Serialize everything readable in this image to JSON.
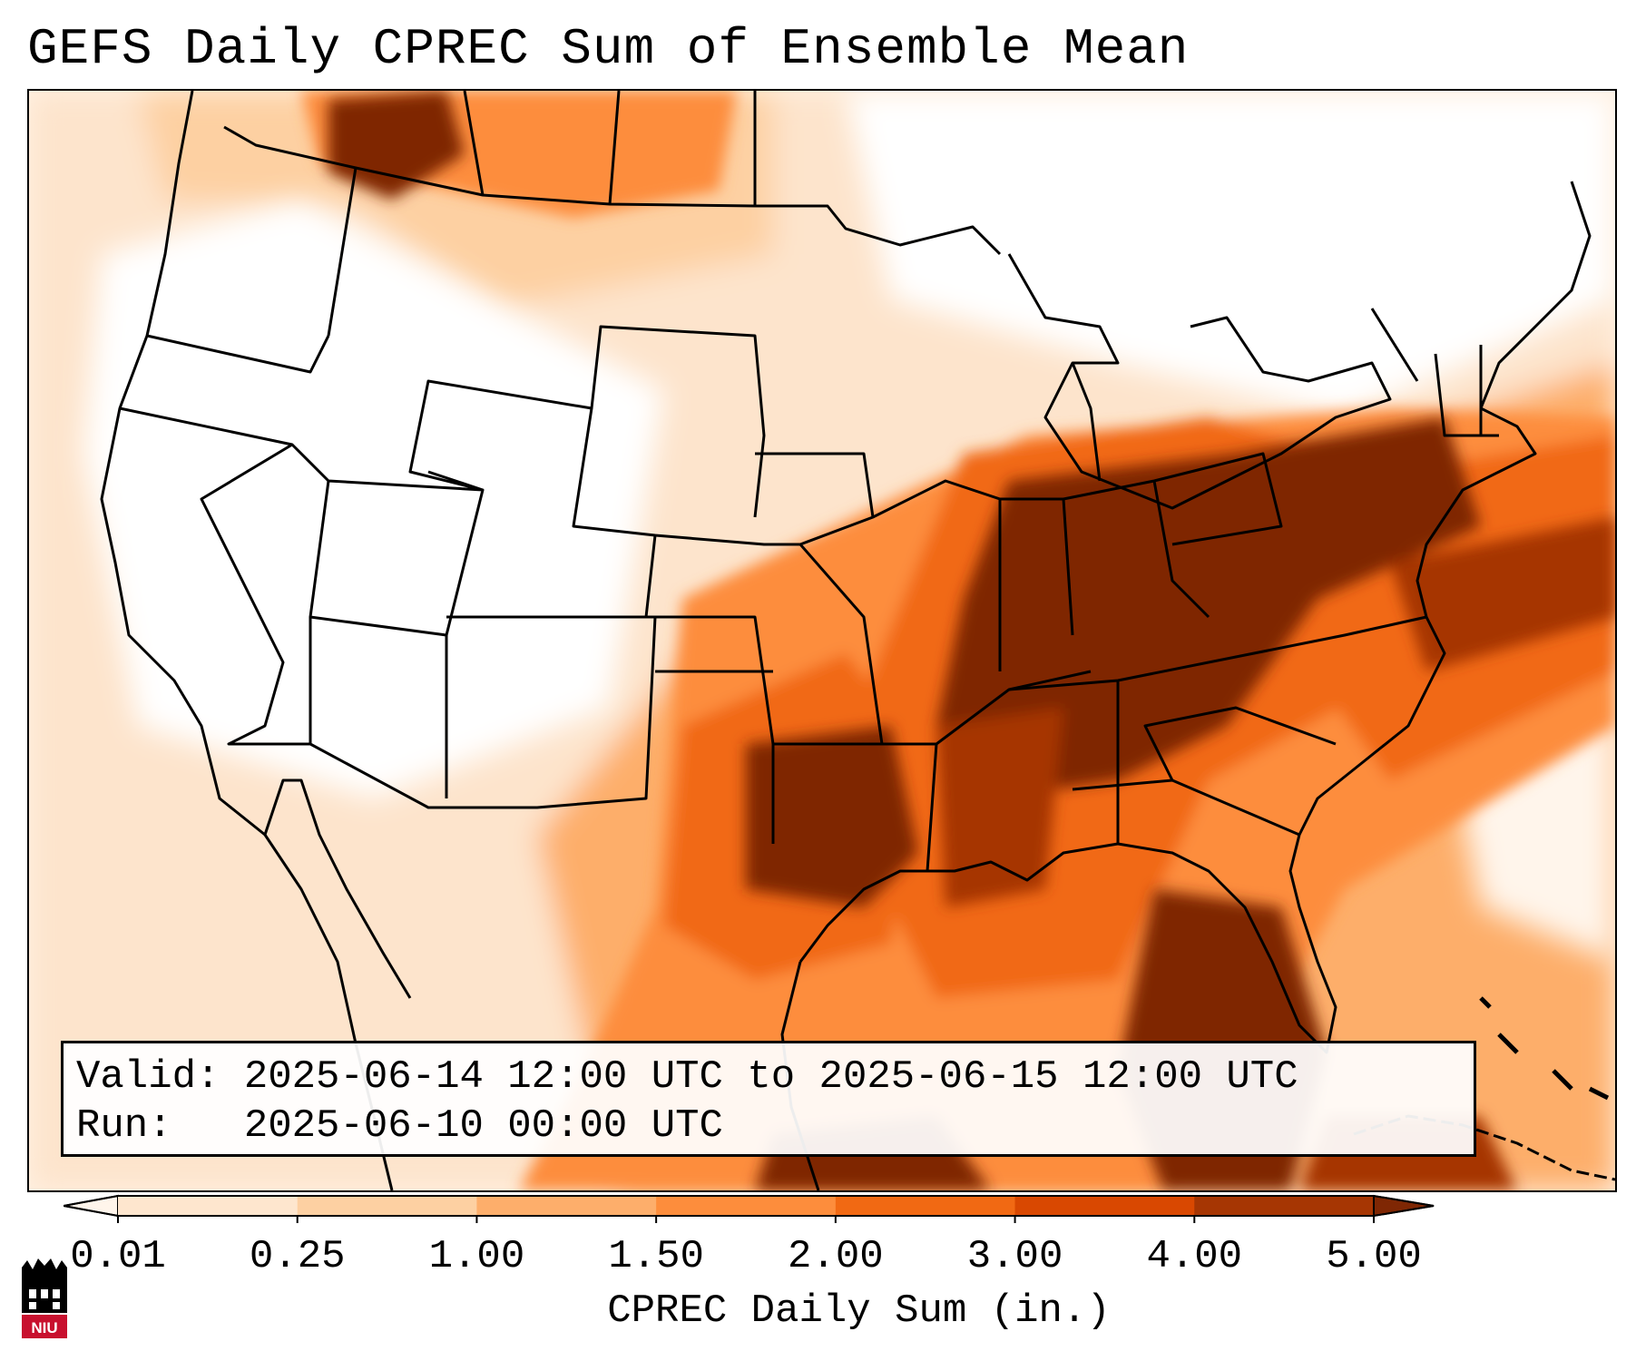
{
  "title": "GEFS Daily CPREC Sum of Ensemble Mean",
  "info": {
    "valid_line": "Valid: 2025-06-14 12:00 UTC to 2025-06-15 12:00 UTC",
    "run_line": "Run:   2025-06-10 00:00 UTC"
  },
  "colorbar": {
    "label": "CPREC Daily Sum (in.)",
    "ticks": [
      "0.01",
      "0.25",
      "1.00",
      "1.50",
      "2.00",
      "3.00",
      "4.00",
      "5.00"
    ],
    "colors": [
      "#fee6ce",
      "#fdd0a2",
      "#fdae6b",
      "#fd8d3c",
      "#f16913",
      "#d94801",
      "#a63603"
    ],
    "under_color": "#fff5eb",
    "over_color": "#7f2704"
  },
  "logo": {
    "text": "NIU",
    "primary_color": "#c8102e",
    "secondary_color": "#000000"
  }
}
